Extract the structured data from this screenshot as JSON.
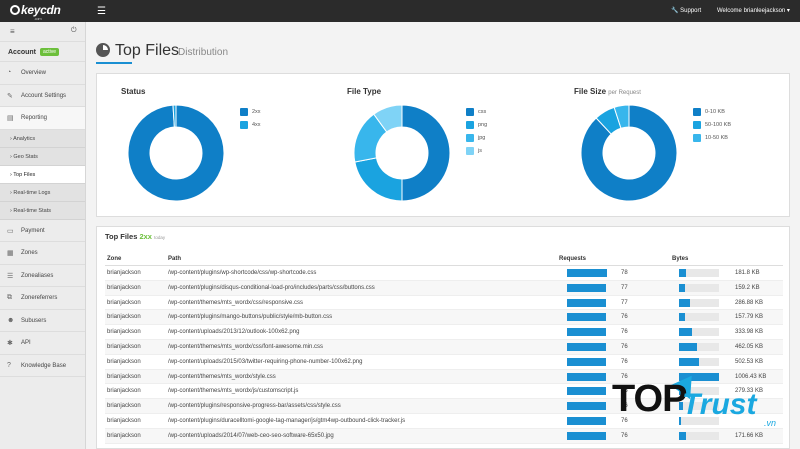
{
  "topbar": {
    "logo": "keycdn",
    "logo_sub": ".com",
    "support_label": "🔧 Support",
    "welcome_label": "Welcome brianleejackson ▾"
  },
  "sidebar": {
    "account_label": "Account",
    "account_badge": "active",
    "items": [
      {
        "label": "Overview",
        "icon": "dashboard-icon"
      },
      {
        "label": "Account Settings",
        "icon": "edit-icon"
      },
      {
        "label": "Reporting",
        "icon": "bar-chart-icon"
      }
    ],
    "sub_items": [
      "Analytics",
      "Geo Stats",
      "Top Files",
      "Real-time Logs",
      "Real-time Stats"
    ],
    "items2": [
      {
        "label": "Payment",
        "icon": "credit-card-icon"
      },
      {
        "label": "Zones",
        "icon": "server-icon"
      },
      {
        "label": "Zonealiases",
        "icon": "list-icon"
      },
      {
        "label": "Zonereferrers",
        "icon": "link-icon"
      },
      {
        "label": "Subusers",
        "icon": "users-icon"
      },
      {
        "label": "API",
        "icon": "gear-icon"
      },
      {
        "label": "Knowledge Base",
        "icon": "help-icon"
      }
    ]
  },
  "page": {
    "title": "Top Files",
    "subtitle": "Distribution"
  },
  "chart_data": [
    {
      "type": "pie",
      "title": "Status",
      "categories": [
        "2xx",
        "4xx"
      ],
      "values": [
        99,
        1
      ],
      "colors": [
        "#0f7fc7",
        "#1aa3e0"
      ]
    },
    {
      "type": "pie",
      "title": "File Type",
      "categories": [
        "css",
        "png",
        "jpg",
        "js"
      ],
      "values": [
        50,
        22,
        18,
        10
      ],
      "colors": [
        "#0f7fc7",
        "#1aa3e0",
        "#38b6ec",
        "#7fd3f6"
      ]
    },
    {
      "type": "pie",
      "title": "File Size",
      "subtitle": "per Request",
      "categories": [
        "0-10 KB",
        "50-100 KB",
        "10-50 KB"
      ],
      "values": [
        88,
        7,
        5
      ],
      "colors": [
        "#0f7fc7",
        "#1aa3e0",
        "#38b6ec"
      ]
    }
  ],
  "table": {
    "title": "Top Files",
    "title_highlight": "2xx",
    "title_note": "today",
    "headers": {
      "zone": "Zone",
      "path": "Path",
      "requests": "Requests",
      "bytes": "Bytes"
    },
    "rows": [
      {
        "zone": "brianjackson",
        "path": "/wp-content/plugins/wp-shortcode/css/wp-shortcode.css",
        "requests": 78,
        "bytes": "181.8 KB",
        "bytes_frac": 0.18
      },
      {
        "zone": "brianjackson",
        "path": "/wp-content/plugins/disqus-conditional-load-pro/includes/parts/css/buttons.css",
        "requests": 77,
        "bytes": "159.2 KB",
        "bytes_frac": 0.16
      },
      {
        "zone": "brianjackson",
        "path": "/wp-content/themes/mts_wordx/css/responsive.css",
        "requests": 77,
        "bytes": "286.88 KB",
        "bytes_frac": 0.28
      },
      {
        "zone": "brianjackson",
        "path": "/wp-content/plugins/mango-buttons/public/style/mb-button.css",
        "requests": 76,
        "bytes": "157.79 KB",
        "bytes_frac": 0.16
      },
      {
        "zone": "brianjackson",
        "path": "/wp-content/uploads/2013/12/outlook-100x62.png",
        "requests": 76,
        "bytes": "333.98 KB",
        "bytes_frac": 0.33
      },
      {
        "zone": "brianjackson",
        "path": "/wp-content/themes/mts_wordx/css/font-awesome.min.css",
        "requests": 76,
        "bytes": "462.05 KB",
        "bytes_frac": 0.46
      },
      {
        "zone": "brianjackson",
        "path": "/wp-content/uploads/2015/03/twitter-requiring-phone-number-100x62.png",
        "requests": 76,
        "bytes": "502.53 KB",
        "bytes_frac": 0.5
      },
      {
        "zone": "brianjackson",
        "path": "/wp-content/themes/mts_wordx/style.css",
        "requests": 76,
        "bytes": "1006.43 KB",
        "bytes_frac": 1.0
      },
      {
        "zone": "brianjackson",
        "path": "/wp-content/themes/mts_wordx/js/customscript.js",
        "requests": 76,
        "bytes": "279.33 KB",
        "bytes_frac": 0.28
      },
      {
        "zone": "brianjackson",
        "path": "/wp-content/plugins/responsive-progress-bar/assets/css/style.css",
        "requests": 76,
        "bytes": "",
        "bytes_frac": 0.1
      },
      {
        "zone": "brianjackson",
        "path": "/wp-content/plugins/duracelltomi-google-tag-manager/js/gtm4wp-outbound-click-tracker.js",
        "requests": 76,
        "bytes": "",
        "bytes_frac": 0.04
      },
      {
        "zone": "brianjackson",
        "path": "/wp-content/uploads/2014/07/web-ceo-seo-software-65x50.jpg",
        "requests": 76,
        "bytes": "171.66 KB",
        "bytes_frac": 0.17
      }
    ]
  },
  "watermark": {
    "top": "TOP",
    "trust": "Trust",
    "vn": ".vn"
  }
}
